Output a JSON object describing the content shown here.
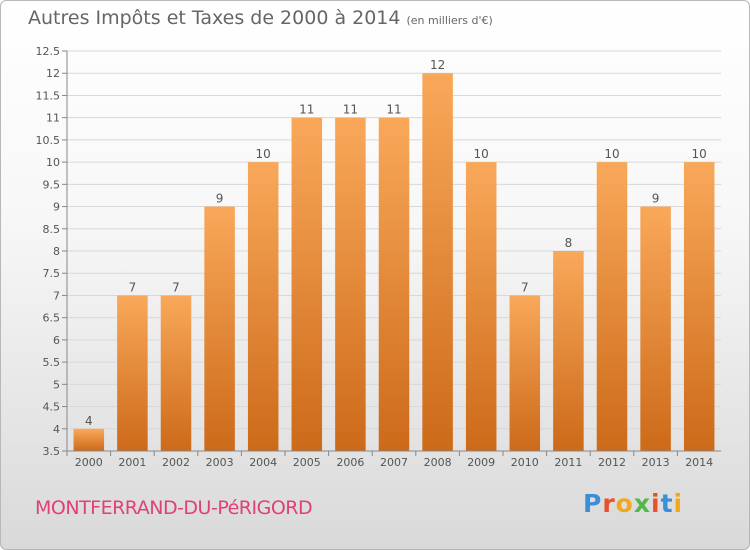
{
  "header": {
    "title": "Autres Impôts et Taxes de 2000 à 2014",
    "unit": "(en milliers d'€)"
  },
  "footer": {
    "place": "MONTFERRAND-DU-PéRIGORD",
    "logo": "Proxiti",
    "logo_colors": [
      "#3a8fd8",
      "#e8512c",
      "#f2a81c",
      "#54b848",
      "#e8512c",
      "#3a8fd8",
      "#f2a81c"
    ]
  },
  "colors": {
    "bar_light": "#f9a85a",
    "bar_dark": "#cc6a19",
    "grid": "#d8d8d8",
    "text": "#555555",
    "place": "#e0407a"
  },
  "chart_data": {
    "type": "bar",
    "title": "Autres Impôts et Taxes de 2000 à 2014",
    "ylabel": "(en milliers d'€)",
    "xlabel": "",
    "categories": [
      "2000",
      "2001",
      "2002",
      "2003",
      "2004",
      "2005",
      "2006",
      "2007",
      "2008",
      "2009",
      "2010",
      "2011",
      "2012",
      "2013",
      "2014"
    ],
    "values": [
      4,
      7,
      7,
      9,
      10,
      11,
      11,
      11,
      12,
      10,
      7,
      8,
      10,
      9,
      10
    ],
    "data_labels": [
      "4",
      "7",
      "7",
      "9",
      "10",
      "11",
      "11",
      "11",
      "12",
      "10",
      "7",
      "8",
      "10",
      "9",
      "10"
    ],
    "ylim": [
      3.5,
      12.5
    ],
    "yticks": [
      "3.5",
      "4",
      "4.5",
      "5",
      "5.5",
      "6",
      "6.5",
      "7",
      "7.5",
      "8",
      "8.5",
      "9",
      "9.5",
      "10",
      "10.5",
      "11",
      "11.5",
      "12",
      "12.5"
    ],
    "grid": true
  }
}
